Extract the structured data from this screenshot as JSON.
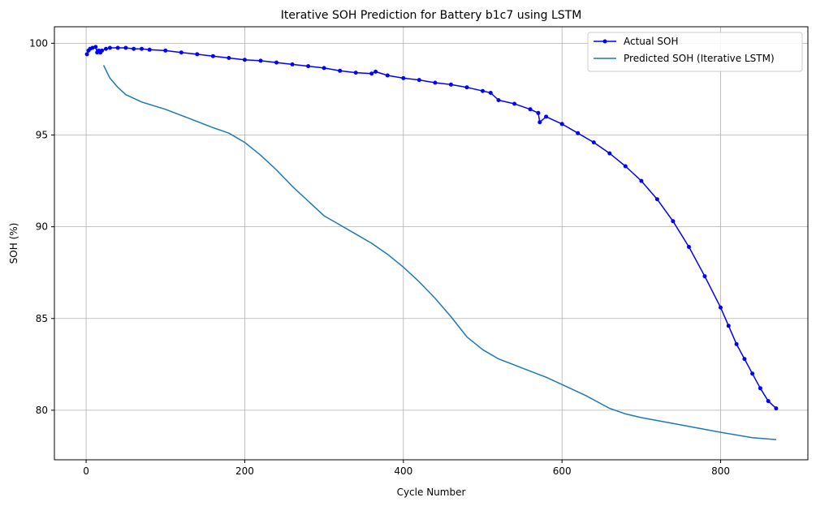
{
  "chart_data": {
    "type": "line",
    "title": "Iterative SOH Prediction for Battery b1c7 using LSTM",
    "xlabel": "Cycle Number",
    "ylabel": "SOH (%)",
    "xlim": [
      -40,
      910
    ],
    "ylim": [
      77.3,
      100.9
    ],
    "xticks": [
      0,
      200,
      400,
      600,
      800
    ],
    "yticks": [
      80,
      85,
      90,
      95,
      100
    ],
    "grid": true,
    "legend_position": "top-right",
    "series": [
      {
        "name": "Actual SOH",
        "color": "#0000ff",
        "marker": "dot",
        "x": [
          1,
          3,
          5,
          8,
          12,
          14,
          16,
          18,
          20,
          25,
          30,
          40,
          50,
          60,
          70,
          80,
          100,
          120,
          140,
          160,
          180,
          200,
          220,
          240,
          260,
          280,
          300,
          320,
          340,
          360,
          365,
          380,
          400,
          420,
          440,
          460,
          480,
          500,
          510,
          520,
          540,
          560,
          570,
          572,
          580,
          600,
          620,
          640,
          660,
          680,
          700,
          720,
          740,
          760,
          780,
          800,
          810,
          820,
          830,
          840,
          850,
          860,
          870
        ],
        "y": [
          99.4,
          99.6,
          99.7,
          99.75,
          99.8,
          99.5,
          99.6,
          99.5,
          99.6,
          99.7,
          99.75,
          99.75,
          99.75,
          99.7,
          99.7,
          99.65,
          99.6,
          99.5,
          99.4,
          99.3,
          99.2,
          99.1,
          99.05,
          98.95,
          98.85,
          98.75,
          98.65,
          98.5,
          98.4,
          98.35,
          98.45,
          98.25,
          98.1,
          98.0,
          97.85,
          97.75,
          97.6,
          97.4,
          97.3,
          96.9,
          96.7,
          96.4,
          96.2,
          95.7,
          96.0,
          95.6,
          95.1,
          94.6,
          94.0,
          93.3,
          92.5,
          91.5,
          90.3,
          88.9,
          87.3,
          85.6,
          84.6,
          83.6,
          82.8,
          82.0,
          81.2,
          80.5,
          80.1
        ]
      },
      {
        "name": "Predicted SOH (Iterative LSTM)",
        "color": "#1f77b4",
        "x": [
          22,
          30,
          40,
          50,
          70,
          100,
          130,
          160,
          180,
          200,
          220,
          240,
          260,
          280,
          300,
          320,
          340,
          360,
          380,
          400,
          420,
          440,
          460,
          480,
          500,
          520,
          550,
          580,
          600,
          630,
          660,
          680,
          700,
          750,
          800,
          840,
          870
        ],
        "y": [
          98.8,
          98.1,
          97.6,
          97.2,
          96.8,
          96.4,
          95.9,
          95.4,
          95.1,
          94.6,
          93.9,
          93.1,
          92.2,
          91.4,
          90.6,
          90.1,
          89.6,
          89.1,
          88.5,
          87.8,
          87.0,
          86.1,
          85.1,
          84.0,
          83.3,
          82.8,
          82.3,
          81.8,
          81.4,
          80.8,
          80.1,
          79.8,
          79.6,
          79.2,
          78.8,
          78.5,
          78.4
        ]
      }
    ]
  }
}
